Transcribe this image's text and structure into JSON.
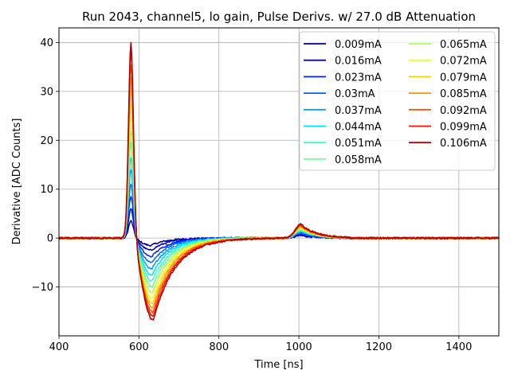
{
  "chart_data": {
    "type": "line",
    "title": "Run 2043, channel5, lo gain, Pulse Derivs. w/ 27.0 dB Attenuation",
    "xlabel": "Time [ns]",
    "ylabel": "Derivative [ADC Counts]",
    "xlim": [
      400,
      1500
    ],
    "ylim": [
      -20,
      43
    ],
    "xticks": [
      400,
      600,
      800,
      1000,
      1200,
      1400
    ],
    "yticks": [
      -10,
      0,
      10,
      20,
      30,
      40
    ],
    "ytick_labels": [
      "−10",
      "0",
      "10",
      "20",
      "30",
      "40"
    ],
    "grid": true,
    "legend_position": "top-right",
    "legend_columns": 2,
    "series": [
      {
        "name": "0.009mA",
        "color": "#00008f",
        "peak": 3.5,
        "trough": -1.5,
        "bump": 0.5
      },
      {
        "name": "0.016mA",
        "color": "#0000d6",
        "peak": 6.0,
        "trough": -2.5,
        "bump": 0.7
      },
      {
        "name": "0.023mA",
        "color": "#0020ff",
        "peak": 8.5,
        "trough": -3.8,
        "bump": 0.9
      },
      {
        "name": "0.03mA",
        "color": "#0060ff",
        "peak": 11.0,
        "trough": -5.0,
        "bump": 1.1
      },
      {
        "name": "0.037mA",
        "color": "#00a0ff",
        "peak": 14.0,
        "trough": -6.3,
        "bump": 1.3
      },
      {
        "name": "0.044mA",
        "color": "#00e0ff",
        "peak": 16.5,
        "trough": -7.6,
        "bump": 1.5
      },
      {
        "name": "0.051mA",
        "color": "#30ffcf",
        "peak": 19.5,
        "trough": -8.8,
        "bump": 1.65
      },
      {
        "name": "0.058mA",
        "color": "#70ff8f",
        "peak": 22.0,
        "trough": -10.0,
        "bump": 1.8
      },
      {
        "name": "0.065mA",
        "color": "#afff50",
        "peak": 25.0,
        "trough": -11.2,
        "bump": 1.95
      },
      {
        "name": "0.072mA",
        "color": "#efff10",
        "peak": 27.5,
        "trough": -12.4,
        "bump": 2.1
      },
      {
        "name": "0.079mA",
        "color": "#ffcf00",
        "peak": 30.5,
        "trough": -13.4,
        "bump": 2.25
      },
      {
        "name": "0.085mA",
        "color": "#ff9000",
        "peak": 33.0,
        "trough": -14.3,
        "bump": 2.4
      },
      {
        "name": "0.092mA",
        "color": "#ff5000",
        "peak": 35.5,
        "trough": -15.2,
        "bump": 2.55
      },
      {
        "name": "0.099mA",
        "color": "#ff1000",
        "peak": 38.0,
        "trough": -16.0,
        "bump": 2.7
      },
      {
        "name": "0.106mA",
        "color": "#af0000",
        "peak": 40.0,
        "trough": -16.8,
        "bump": 2.85
      }
    ]
  }
}
